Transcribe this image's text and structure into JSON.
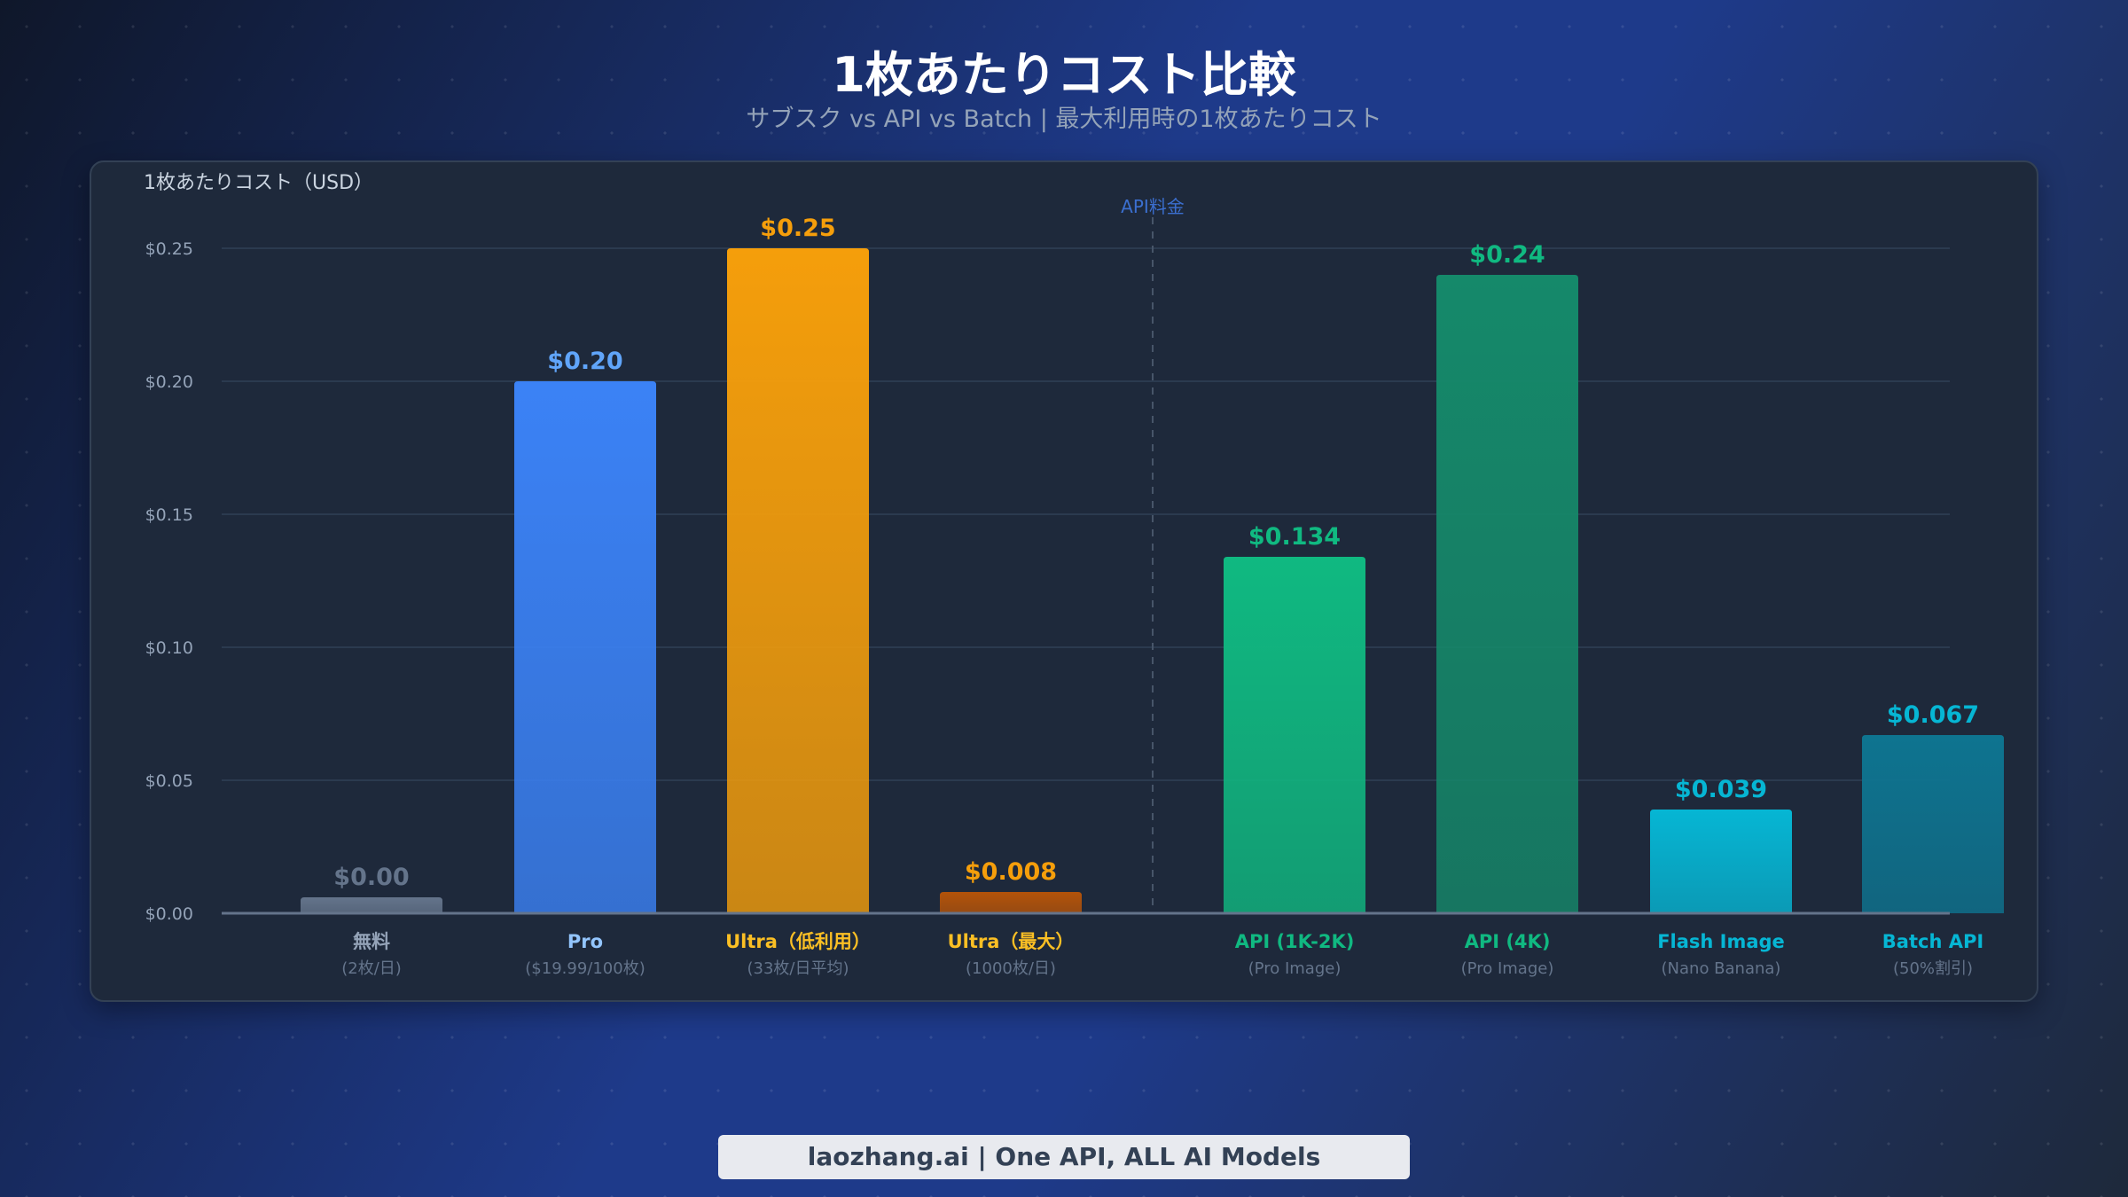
{
  "title": "1枚あたりコスト比較",
  "subtitle": "サブスク vs API vs Batch | 最大利用時の1枚あたりコスト",
  "footer": "laozhang.ai | One API, ALL AI Models",
  "chart_data": {
    "type": "bar",
    "ylabel": "1枚あたりコスト（USD）",
    "ylim": [
      0,
      0.25
    ],
    "yticks": [
      "$0.00",
      "$0.05",
      "$0.10",
      "$0.15",
      "$0.20",
      "$0.25"
    ],
    "grid": true,
    "divider_label": "API料金",
    "categories": [
      {
        "label": "無料",
        "sub": "(2枚/日)",
        "value": 0.0,
        "value_label": "$0.00",
        "color": "#64748b",
        "label_color": "#94a3b8"
      },
      {
        "label": "Pro",
        "sub": "($19.99/100枚)",
        "value": 0.2,
        "value_label": "$0.20",
        "color": "#3b82f6",
        "label_color": "#93c5fd"
      },
      {
        "label": "Ultra（低利用）",
        "sub": "(33枚/日平均)",
        "value": 0.25,
        "value_label": "$0.25",
        "color": "#f59e0b",
        "label_color": "#fbbf24"
      },
      {
        "label": "Ultra（最大）",
        "sub": "(1000枚/日)",
        "value": 0.008,
        "value_label": "$0.008",
        "color": "#b45309",
        "label_color": "#fbbf24"
      },
      {
        "label": "API (1K-2K)",
        "sub": "(Pro Image)",
        "value": 0.134,
        "value_label": "$0.134",
        "color": "#10b981",
        "label_color": "#10b981"
      },
      {
        "label": "API (4K)",
        "sub": "(Pro Image)",
        "value": 0.24,
        "value_label": "$0.24",
        "color": "#15896a",
        "label_color": "#10b981"
      },
      {
        "label": "Flash Image",
        "sub": "(Nano Banana)",
        "value": 0.039,
        "value_label": "$0.039",
        "color": "#06b6d4",
        "label_color": "#06b6d4"
      },
      {
        "label": "Batch API",
        "sub": "(50%割引)",
        "value": 0.067,
        "value_label": "$0.067",
        "color": "#0e7490",
        "label_color": "#06b6d4"
      }
    ]
  }
}
